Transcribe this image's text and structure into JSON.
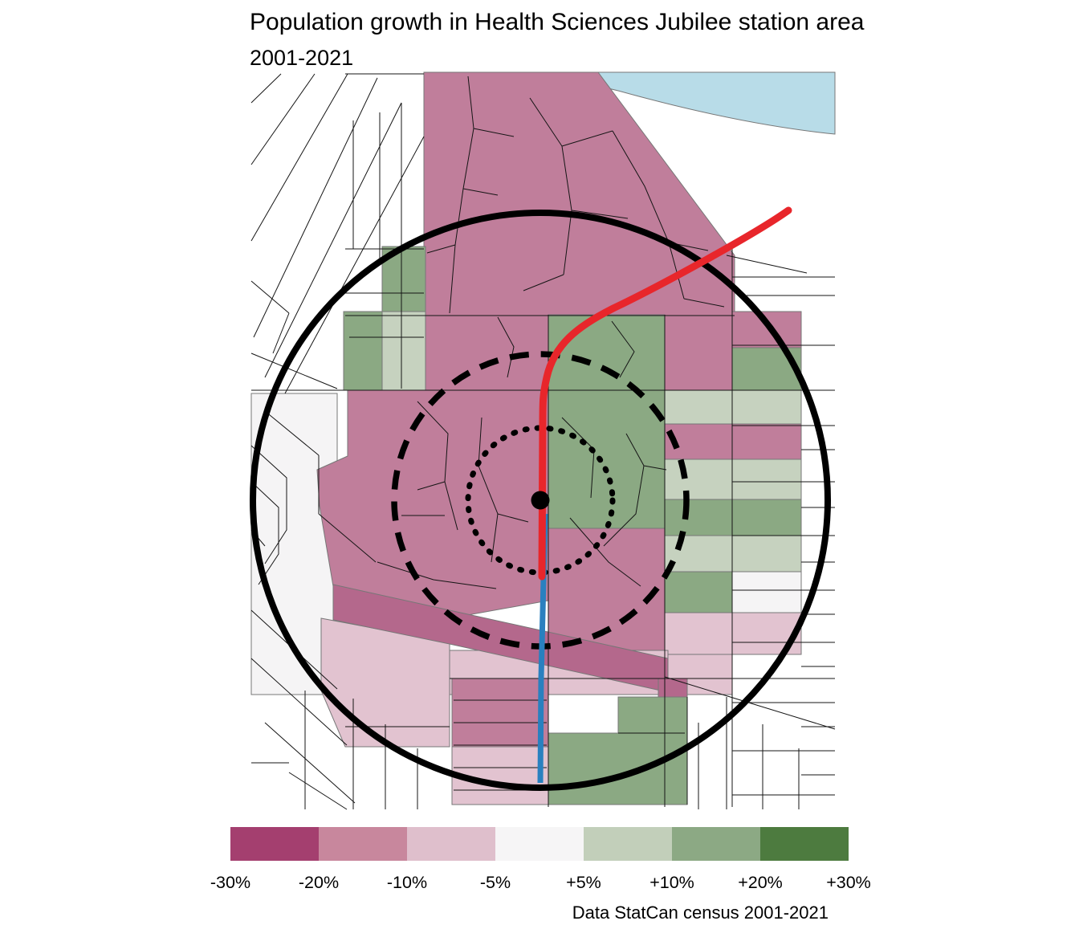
{
  "title": "Population growth in Health Sciences Jubilee station area",
  "subtitle": "2001-2021",
  "caption": "Data StatCan census 2001-2021",
  "legend": {
    "tick_labels": [
      "-30%",
      "-20%",
      "-10%",
      "-5%",
      "+5%",
      "+10%",
      "+20%",
      "+30%"
    ],
    "swatch_colors": [
      "#a43f6f",
      "#c8879d",
      "#dfbfcc",
      "#f6f5f6",
      "#c2cfba",
      "#8ca984",
      "#4d7b3f"
    ]
  },
  "palette": {
    "map_pink_mid": "#c07e9b",
    "map_pink_dark": "#b4688c",
    "map_pink_light": "#e2c3d0",
    "map_green_mid": "#8ba983",
    "map_green_light": "#c6d2bf",
    "map_neutral": "#f5f4f5",
    "water": "#b8dce8",
    "red_line": "#e8262b",
    "blue_line": "#2980bf",
    "ring_color": "#000000"
  },
  "chart_data": {
    "type": "choropleth-map",
    "title": "Population growth in Health Sciences Jubilee station area",
    "subtitle": "2001-2021",
    "caption": "Data StatCan census 2001-2021",
    "legend_breaks_percent": [
      -30,
      -20,
      -10,
      -5,
      5,
      10,
      20,
      30
    ],
    "legend_labels": [
      "-30%",
      "-20%",
      "-10%",
      "-5%",
      "+5%",
      "+10%",
      "+20%",
      "+30%"
    ],
    "legend_colors": [
      "#a43f6f",
      "#c8879d",
      "#dfbfcc",
      "#f6f5f6",
      "#c2cfba",
      "#8ca984",
      "#4d7b3f"
    ],
    "map_features": {
      "station_point": "Health Sciences Jubilee station (black dot at map center)",
      "rings": [
        "inner dotted ring around station",
        "middle dashed ring around station",
        "outer solid ring around station"
      ],
      "transit_lines": [
        "red line entering from northeast through station",
        "blue line continuing south of station"
      ],
      "water": "light blue water body along top-right edge",
      "fill_meaning": "census tract population growth 2001-2021, pink = decline, green = growth"
    }
  }
}
